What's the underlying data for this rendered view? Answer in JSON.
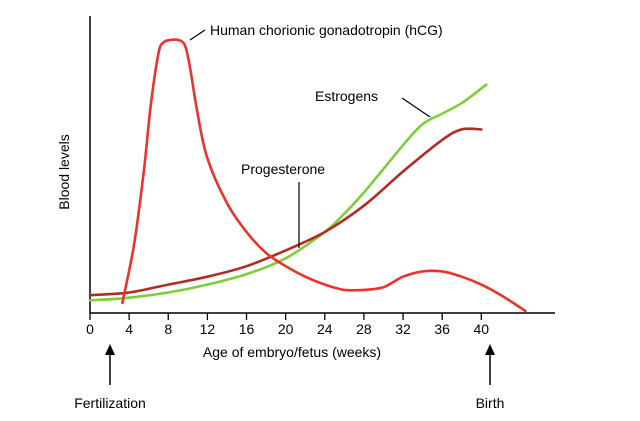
{
  "chart_data": {
    "type": "line",
    "title": "",
    "xlabel": "Age of embryo/fetus (weeks)",
    "ylabel": "Blood levels",
    "xlim": [
      0,
      46
    ],
    "ylim": [
      0,
      100
    ],
    "x_ticks": [
      0,
      4,
      8,
      12,
      16,
      20,
      24,
      28,
      32,
      36,
      40
    ],
    "y_ticks": [],
    "grid": false,
    "legend": "none (series labeled directly on chart)",
    "series": [
      {
        "name": "Human chorionic gonadotropin (hCG)",
        "color": "#e8342c",
        "x": [
          3.3,
          4.5,
          5.5,
          6.2,
          7.0,
          7.5,
          8.2,
          9.0,
          9.7,
          10.2,
          11.0,
          12.0,
          14.0,
          16.0,
          18.0,
          20.0,
          22.0,
          24.0,
          26.0,
          28.0,
          30.0,
          32.0,
          34.0,
          36.0,
          38.0,
          40.0,
          42.0,
          44.5
        ],
        "values": [
          0,
          22,
          50,
          75,
          95,
          99,
          100,
          100,
          98,
          90,
          72,
          55,
          38,
          27,
          19,
          14,
          10,
          7,
          5,
          5,
          6,
          10,
          12,
          12,
          10,
          7,
          3,
          -3
        ]
      },
      {
        "name": "Progesterone",
        "color": "#b02c25",
        "x": [
          0,
          4,
          8,
          12,
          16,
          20,
          24,
          28,
          32,
          36,
          38,
          40
        ],
        "values": [
          3,
          4,
          7,
          10,
          14,
          20,
          27,
          37,
          50,
          62,
          66,
          66
        ]
      },
      {
        "name": "Estrogens",
        "color": "#7dcd3c",
        "x": [
          0,
          4,
          8,
          12,
          16,
          20,
          24,
          26,
          28,
          32,
          34,
          36,
          38,
          40.5
        ],
        "values": [
          1,
          2,
          4,
          7,
          11,
          17,
          27,
          34,
          42,
          60,
          68,
          72,
          76,
          83
        ]
      }
    ],
    "annotations": [
      {
        "text": "Fertilization",
        "x": 2
      },
      {
        "text": "Birth",
        "x": 40
      }
    ]
  }
}
